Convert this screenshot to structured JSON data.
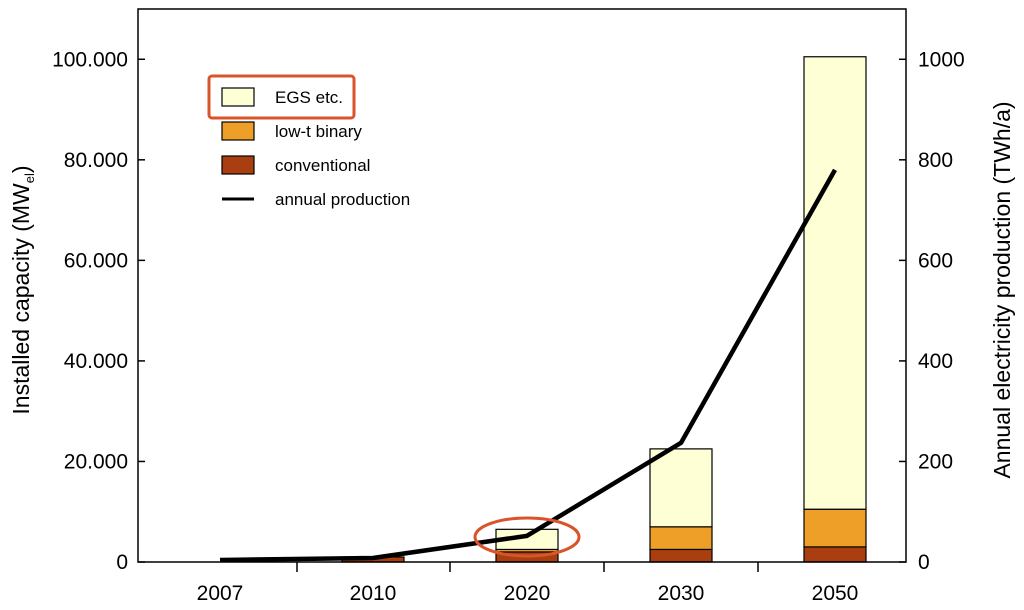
{
  "chart_data": {
    "type": "bar",
    "stacked": true,
    "categories": [
      "2007",
      "2010",
      "2020",
      "2030",
      "2050"
    ],
    "series": [
      {
        "name": "conventional",
        "axis": "left",
        "color": "#a93f10",
        "values": [
          0,
          1000,
          2000,
          2500,
          3000
        ]
      },
      {
        "name": "low-t binary",
        "axis": "left",
        "color": "#ee9f27",
        "values": [
          0,
          0,
          500,
          4500,
          7500
        ]
      },
      {
        "name": "EGS etc.",
        "axis": "left",
        "color": "#ffffd6",
        "values": [
          0,
          0,
          4000,
          15500,
          90000
        ]
      }
    ],
    "line_series": {
      "name": "annual production",
      "axis": "right",
      "color": "#000000",
      "values": [
        4,
        8,
        52,
        237,
        780
      ]
    },
    "left_axis": {
      "title_main": "Installed capacity (MW",
      "title_sub": "el",
      "title_end": ")",
      "ylim": [
        0,
        110000
      ],
      "ticks": [
        0,
        20000,
        40000,
        60000,
        80000,
        100000
      ],
      "tick_labels": [
        "0",
        "20.000",
        "40.000",
        "60.000",
        "80.000",
        "100.000"
      ]
    },
    "right_axis": {
      "title": "Annual electricity production (TWh/a)",
      "ylim": [
        0,
        1100
      ],
      "ticks": [
        0,
        200,
        400,
        600,
        800,
        1000
      ],
      "tick_labels": [
        "0",
        "200",
        "400",
        "600",
        "800",
        "1000"
      ]
    },
    "legend": {
      "position": "top-left",
      "items": [
        {
          "label": "EGS etc.",
          "color": "#ffffd6",
          "kind": "box",
          "highlighted": true
        },
        {
          "label": "low-t binary",
          "color": "#ee9f27",
          "kind": "box"
        },
        {
          "label": "conventional",
          "color": "#a93f10",
          "kind": "box"
        },
        {
          "label": "annual production",
          "color": "#000000",
          "kind": "line"
        }
      ]
    },
    "annotations": [
      {
        "type": "ellipse",
        "target_category": "2020",
        "color": "#d9542b"
      },
      {
        "type": "box",
        "target": "legend EGS etc.",
        "color": "#d9542b"
      }
    ]
  }
}
